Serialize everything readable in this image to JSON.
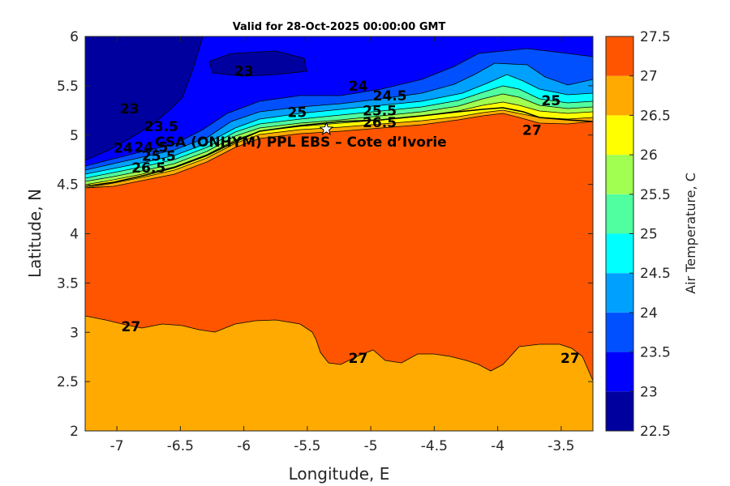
{
  "chart_data": {
    "type": "contour",
    "title": "Valid for 28-Oct-2025 00:00:00 GMT",
    "xlabel": "Longitude, E",
    "ylabel": "Latitude, N",
    "xlim": [
      -7.25,
      -3.25
    ],
    "ylim": [
      2,
      6
    ],
    "xticks": [
      "-7",
      "-6.5",
      "-6",
      "-5.5",
      "-5",
      "-4.5",
      "-4",
      "-3.5"
    ],
    "yticks": [
      "2",
      "2.5",
      "3",
      "3.5",
      "4",
      "4.5",
      "5",
      "5.5",
      "6"
    ],
    "colorbar": {
      "label": "Air Temperature, C",
      "levels": [
        22.5,
        23,
        23.5,
        24,
        24.5,
        25,
        25.5,
        26,
        26.5,
        27,
        27.5
      ],
      "ticks": [
        "22.5",
        "23",
        "23.5",
        "24",
        "24.5",
        "25",
        "25.5",
        "26",
        "26.5",
        "27",
        "27.5"
      ],
      "colors": [
        "#00009f",
        "#0000ff",
        "#0050ff",
        "#00a0ff",
        "#00ffff",
        "#50ffa0",
        "#a0ff50",
        "#ffff00",
        "#ffaa00",
        "#ff5500",
        "#ff0000"
      ]
    },
    "contour_labels": [
      {
        "text": "23",
        "lon": -6.0,
        "lat": 5.65
      },
      {
        "text": "23",
        "lon": -6.9,
        "lat": 5.27
      },
      {
        "text": "23.5",
        "lon": -6.65,
        "lat": 5.09
      },
      {
        "text": "24",
        "lon": -5.1,
        "lat": 5.5
      },
      {
        "text": "24.5",
        "lon": -4.85,
        "lat": 5.4
      },
      {
        "text": "25",
        "lon": -5.58,
        "lat": 5.23
      },
      {
        "text": "25",
        "lon": -3.58,
        "lat": 5.35
      },
      {
        "text": "25.5",
        "lon": -4.93,
        "lat": 5.25
      },
      {
        "text": "26.5",
        "lon": -4.93,
        "lat": 5.13
      },
      {
        "text": "27",
        "lon": -3.73,
        "lat": 5.05
      },
      {
        "text": "24",
        "lon": -6.95,
        "lat": 4.87
      },
      {
        "text": "24.5",
        "lon": -6.73,
        "lat": 4.88
      },
      {
        "text": "25.5",
        "lon": -6.67,
        "lat": 4.79
      },
      {
        "text": "26.5",
        "lon": -6.75,
        "lat": 4.67
      },
      {
        "text": "27",
        "lon": -6.89,
        "lat": 3.06
      },
      {
        "text": "27",
        "lon": -5.1,
        "lat": 2.74
      },
      {
        "text": "27",
        "lon": -3.43,
        "lat": 2.74
      }
    ],
    "site": {
      "name": "CSA (ONHYM) PPL EBS  – Cote d’Ivorie",
      "lon": -5.35,
      "lat": 5.06
    }
  }
}
